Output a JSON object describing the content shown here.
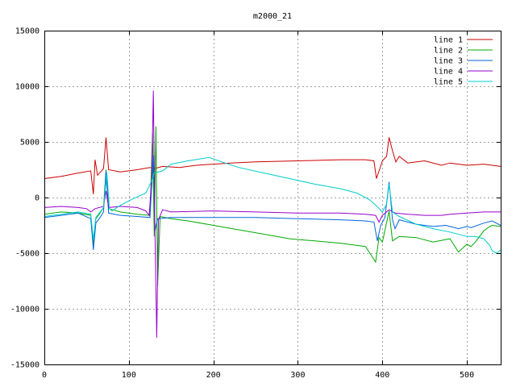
{
  "chart_data": {
    "type": "line",
    "title": "m2000_21",
    "xlabel": "",
    "ylabel": "",
    "xlim": [
      0,
      540
    ],
    "ylim": [
      -15000,
      15000
    ],
    "xticks": [
      0,
      100,
      200,
      300,
      400,
      500
    ],
    "xtick_labels": [
      "0",
      "100",
      "200",
      "300",
      "400",
      "500"
    ],
    "yticks": [
      -15000,
      -10000,
      -5000,
      0,
      5000,
      10000,
      15000
    ],
    "ytick_labels": [
      "-15000",
      "-10000",
      "-5000",
      "0",
      "5000",
      "10000",
      "15000"
    ],
    "grid": true,
    "legend": "top-right",
    "series": [
      {
        "name": "line 1",
        "color": "#cc0000",
        "points": [
          [
            0,
            1700
          ],
          [
            20,
            1900
          ],
          [
            40,
            2200
          ],
          [
            55,
            2400
          ],
          [
            58,
            300
          ],
          [
            60,
            3400
          ],
          [
            63,
            2000
          ],
          [
            70,
            2600
          ],
          [
            73,
            5400
          ],
          [
            76,
            2500
          ],
          [
            90,
            2300
          ],
          [
            110,
            2500
          ],
          [
            125,
            2700
          ],
          [
            130,
            2600
          ],
          [
            140,
            2800
          ],
          [
            160,
            2700
          ],
          [
            180,
            2900
          ],
          [
            200,
            3000
          ],
          [
            220,
            3100
          ],
          [
            250,
            3200
          ],
          [
            300,
            3300
          ],
          [
            350,
            3400
          ],
          [
            380,
            3400
          ],
          [
            390,
            3300
          ],
          [
            393,
            1700
          ],
          [
            397,
            2600
          ],
          [
            400,
            3300
          ],
          [
            405,
            3700
          ],
          [
            408,
            5400
          ],
          [
            412,
            4200
          ],
          [
            416,
            3200
          ],
          [
            420,
            3700
          ],
          [
            430,
            3100
          ],
          [
            450,
            3300
          ],
          [
            470,
            2900
          ],
          [
            480,
            3100
          ],
          [
            500,
            2900
          ],
          [
            520,
            3000
          ],
          [
            540,
            2800
          ]
        ]
      },
      {
        "name": "line 2",
        "color": "#00aa00",
        "points": [
          [
            0,
            -1500
          ],
          [
            20,
            -1300
          ],
          [
            40,
            -1400
          ],
          [
            55,
            -1600
          ],
          [
            58,
            -4300
          ],
          [
            61,
            -1900
          ],
          [
            65,
            -1500
          ],
          [
            70,
            -900
          ],
          [
            73,
            2500
          ],
          [
            76,
            -1000
          ],
          [
            90,
            -1300
          ],
          [
            110,
            -1500
          ],
          [
            125,
            -1600
          ],
          [
            128,
            5800
          ],
          [
            130,
            -3500
          ],
          [
            132,
            6400
          ],
          [
            134,
            -8000
          ],
          [
            137,
            -1700
          ],
          [
            150,
            -1900
          ],
          [
            170,
            -2100
          ],
          [
            200,
            -2500
          ],
          [
            230,
            -2900
          ],
          [
            260,
            -3300
          ],
          [
            290,
            -3700
          ],
          [
            320,
            -3900
          ],
          [
            350,
            -4100
          ],
          [
            380,
            -4400
          ],
          [
            392,
            -5800
          ],
          [
            396,
            -3600
          ],
          [
            400,
            -4000
          ],
          [
            408,
            -1200
          ],
          [
            412,
            -3900
          ],
          [
            420,
            -3500
          ],
          [
            440,
            -3600
          ],
          [
            460,
            -4000
          ],
          [
            480,
            -3700
          ],
          [
            490,
            -4900
          ],
          [
            500,
            -4200
          ],
          [
            505,
            -4400
          ],
          [
            510,
            -4000
          ],
          [
            520,
            -3000
          ],
          [
            527,
            -2600
          ],
          [
            530,
            -2500
          ],
          [
            540,
            -2600
          ]
        ]
      },
      {
        "name": "line 3",
        "color": "#0066dd",
        "points": [
          [
            0,
            -1800
          ],
          [
            20,
            -1600
          ],
          [
            40,
            -1400
          ],
          [
            55,
            -1900
          ],
          [
            58,
            -4700
          ],
          [
            61,
            -2300
          ],
          [
            65,
            -1900
          ],
          [
            70,
            -1300
          ],
          [
            73,
            2400
          ],
          [
            76,
            -1400
          ],
          [
            90,
            -1600
          ],
          [
            110,
            -1700
          ],
          [
            125,
            -1800
          ],
          [
            129,
            3800
          ],
          [
            131,
            -3000
          ],
          [
            134,
            -1900
          ],
          [
            150,
            -1800
          ],
          [
            200,
            -1800
          ],
          [
            250,
            -1800
          ],
          [
            300,
            -1900
          ],
          [
            350,
            -2000
          ],
          [
            380,
            -2100
          ],
          [
            390,
            -2200
          ],
          [
            394,
            -3900
          ],
          [
            398,
            -2500
          ],
          [
            403,
            -1800
          ],
          [
            408,
            1400
          ],
          [
            412,
            -2000
          ],
          [
            415,
            -2800
          ],
          [
            420,
            -2000
          ],
          [
            440,
            -2400
          ],
          [
            460,
            -2600
          ],
          [
            475,
            -2500
          ],
          [
            490,
            -2800
          ],
          [
            500,
            -2600
          ],
          [
            505,
            -2700
          ],
          [
            520,
            -2300
          ],
          [
            530,
            -2100
          ],
          [
            540,
            -2500
          ]
        ]
      },
      {
        "name": "line 4",
        "color": "#9900cc",
        "points": [
          [
            0,
            -900
          ],
          [
            20,
            -800
          ],
          [
            40,
            -900
          ],
          [
            50,
            -1000
          ],
          [
            55,
            -1300
          ],
          [
            60,
            -1000
          ],
          [
            70,
            -800
          ],
          [
            73,
            600
          ],
          [
            76,
            -900
          ],
          [
            90,
            -800
          ],
          [
            110,
            -900
          ],
          [
            120,
            -1200
          ],
          [
            124,
            -1600
          ],
          [
            127,
            1500
          ],
          [
            129,
            9600
          ],
          [
            131,
            -3500
          ],
          [
            133,
            -12600
          ],
          [
            135,
            -2000
          ],
          [
            140,
            -1100
          ],
          [
            150,
            -1300
          ],
          [
            200,
            -1200
          ],
          [
            250,
            -1300
          ],
          [
            300,
            -1400
          ],
          [
            350,
            -1400
          ],
          [
            380,
            -1500
          ],
          [
            392,
            -1600
          ],
          [
            396,
            -2200
          ],
          [
            400,
            -1600
          ],
          [
            408,
            -1100
          ],
          [
            415,
            -1400
          ],
          [
            430,
            -1500
          ],
          [
            450,
            -1600
          ],
          [
            470,
            -1600
          ],
          [
            480,
            -1500
          ],
          [
            500,
            -1400
          ],
          [
            520,
            -1300
          ],
          [
            540,
            -1300
          ]
        ]
      },
      {
        "name": "line 5",
        "color": "#00cccc",
        "points": [
          [
            0,
            -1700
          ],
          [
            20,
            -1500
          ],
          [
            40,
            -1300
          ],
          [
            55,
            -1500
          ],
          [
            58,
            -3800
          ],
          [
            61,
            -1800
          ],
          [
            65,
            -1400
          ],
          [
            70,
            -900
          ],
          [
            74,
            2200
          ],
          [
            77,
            -1000
          ],
          [
            80,
            -1200
          ],
          [
            90,
            -700
          ],
          [
            105,
            -100
          ],
          [
            120,
            400
          ],
          [
            127,
            1500
          ],
          [
            130,
            2200
          ],
          [
            140,
            2400
          ],
          [
            150,
            3000
          ],
          [
            170,
            3300
          ],
          [
            195,
            3600
          ],
          [
            210,
            3200
          ],
          [
            230,
            2700
          ],
          [
            260,
            2200
          ],
          [
            290,
            1700
          ],
          [
            320,
            1200
          ],
          [
            350,
            800
          ],
          [
            370,
            400
          ],
          [
            385,
            -200
          ],
          [
            395,
            -900
          ],
          [
            400,
            -1300
          ],
          [
            405,
            -600
          ],
          [
            408,
            1200
          ],
          [
            412,
            -1300
          ],
          [
            420,
            -1700
          ],
          [
            440,
            -2400
          ],
          [
            460,
            -2800
          ],
          [
            480,
            -3100
          ],
          [
            500,
            -3500
          ],
          [
            510,
            -3500
          ],
          [
            520,
            -3700
          ],
          [
            527,
            -4300
          ],
          [
            530,
            -4800
          ],
          [
            535,
            -5000
          ],
          [
            540,
            -4700
          ]
        ]
      }
    ]
  }
}
